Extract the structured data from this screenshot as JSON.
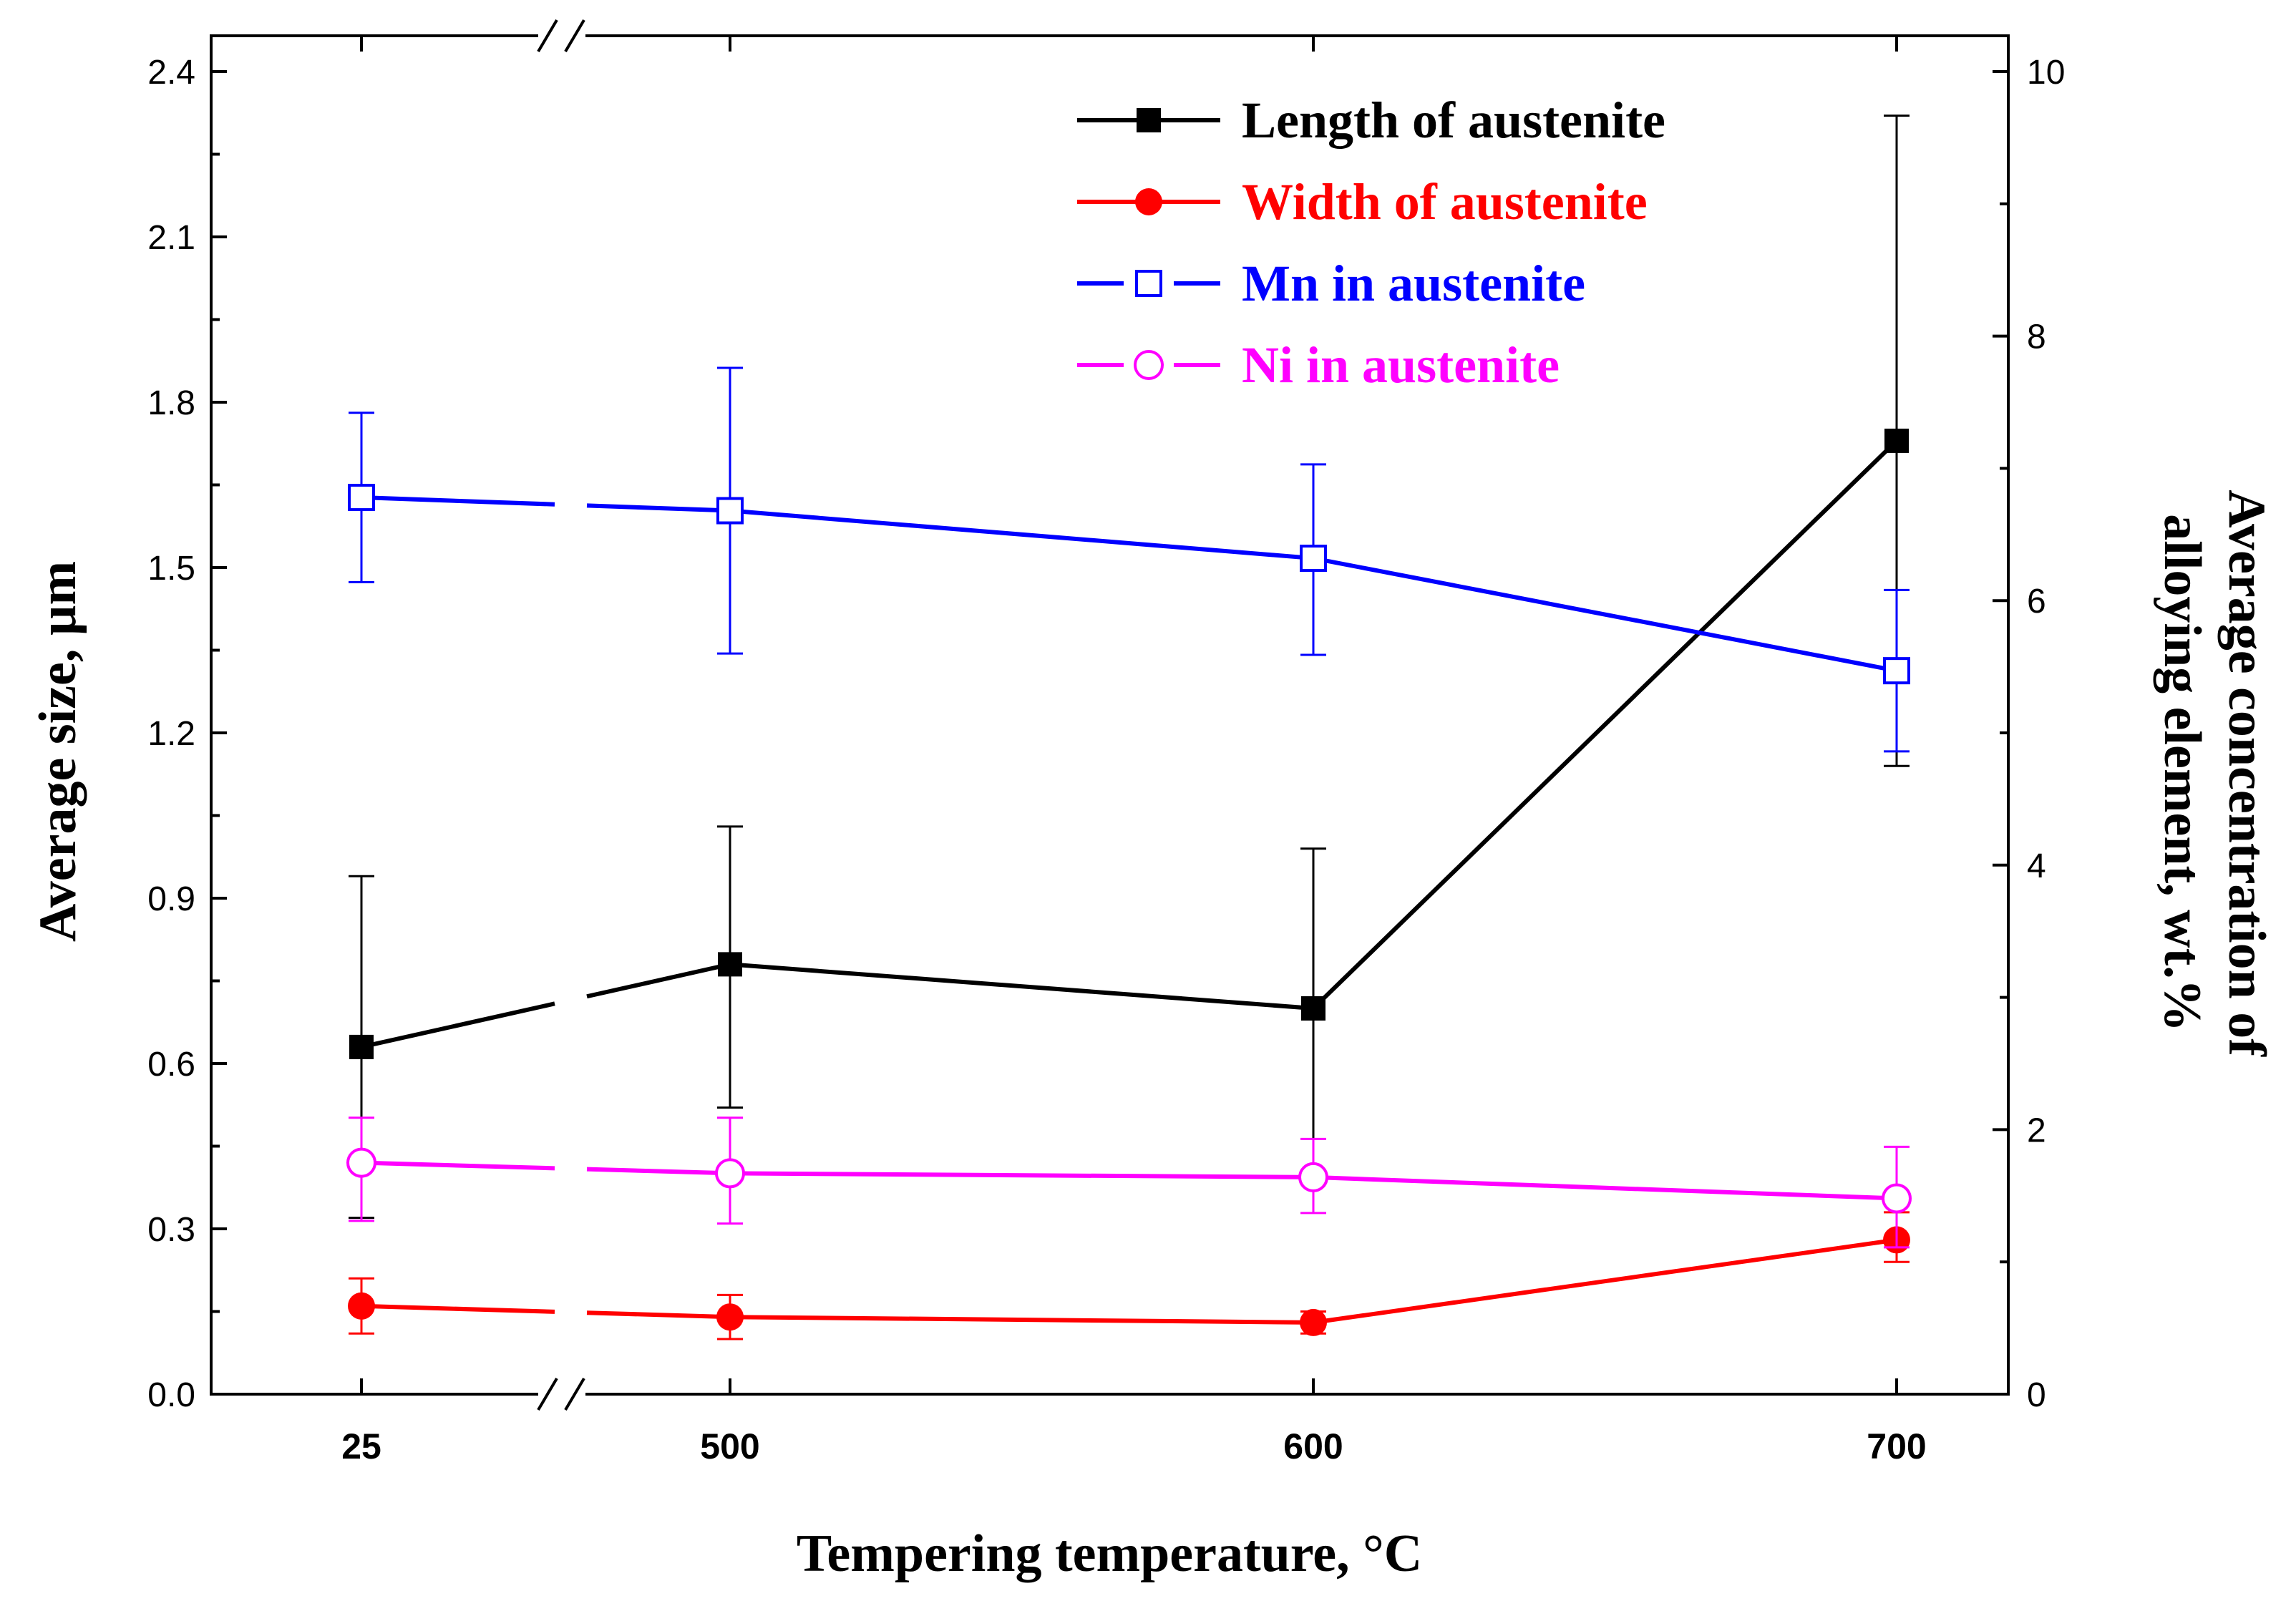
{
  "chart_data": {
    "type": "line",
    "xlabel": "Tempering temperature, °C",
    "ylabel_left": "Average size, µm",
    "ylabel_right_line1": "Average concentration of",
    "ylabel_right_line2": "alloying element, wt.%",
    "categories": [
      "25",
      "500",
      "600",
      "700"
    ],
    "x_axis_break_between": [
      "25",
      "500"
    ],
    "ylim_left": [
      0.0,
      2.4
    ],
    "yticks_left": [
      "0.0",
      "0.3",
      "0.6",
      "0.9",
      "1.2",
      "1.5",
      "1.8",
      "2.1",
      "2.4"
    ],
    "ylim_right": [
      0,
      10
    ],
    "yticks_right": [
      "0",
      "2",
      "4",
      "6",
      "8",
      "10"
    ],
    "series": [
      {
        "name": "Length of austenite",
        "axis": "left",
        "color": "#000000",
        "marker": "square-filled",
        "line": "solid",
        "values": [
          0.63,
          0.78,
          0.7,
          1.73
        ],
        "err_low": [
          0.32,
          0.52,
          0.4,
          1.14
        ],
        "err_high": [
          0.94,
          1.03,
          0.99,
          2.32
        ]
      },
      {
        "name": "Width of austenite",
        "axis": "left",
        "color": "#ff0000",
        "marker": "circle-filled",
        "line": "solid",
        "values": [
          0.16,
          0.14,
          0.13,
          0.28
        ],
        "err_low": [
          0.11,
          0.1,
          0.11,
          0.24
        ],
        "err_high": [
          0.21,
          0.18,
          0.15,
          0.33
        ]
      },
      {
        "name": "Mn in austenite",
        "axis": "right",
        "color": "#0000ff",
        "marker": "square-open",
        "line": "solid",
        "values": [
          6.78,
          6.68,
          6.32,
          5.47
        ],
        "err_low": [
          6.14,
          5.6,
          5.59,
          4.86
        ],
        "err_high": [
          7.42,
          7.76,
          7.03,
          6.08
        ]
      },
      {
        "name": "Ni in austenite",
        "axis": "right",
        "color": "#ff00ff",
        "marker": "circle-open",
        "line": "solid",
        "values": [
          1.75,
          1.67,
          1.64,
          1.48
        ],
        "err_low": [
          1.31,
          1.29,
          1.37,
          1.11
        ],
        "err_high": [
          2.09,
          2.09,
          1.93,
          1.87
        ]
      }
    ],
    "legend_position": "top-right"
  }
}
